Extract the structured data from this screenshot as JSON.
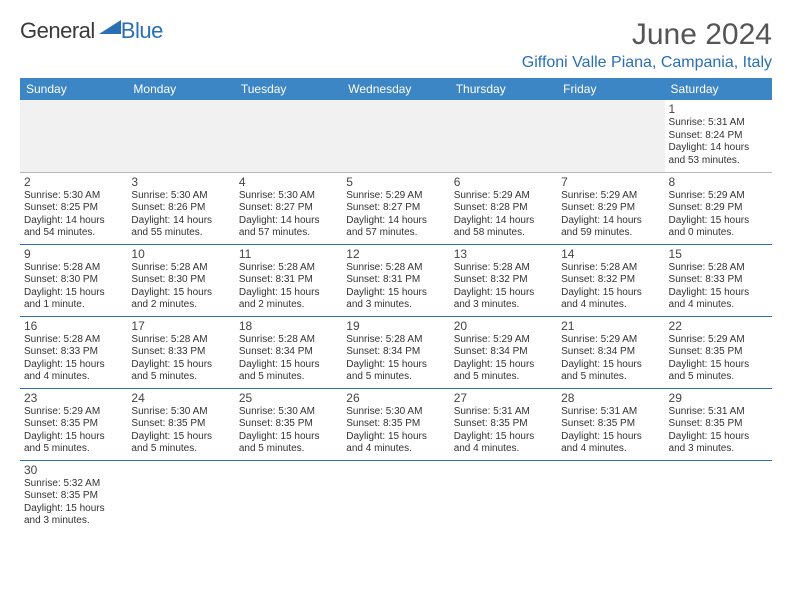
{
  "logo": {
    "general": "General",
    "blue": "Blue"
  },
  "title": "June 2024",
  "location": "Giffoni Valle Piana, Campania, Italy",
  "colors": {
    "header_bg": "#3d86c6",
    "header_text": "#ffffff",
    "accent": "#2a6fb5",
    "body_text": "#333333",
    "title_text": "#555555",
    "empty_bg": "#f1f1f1"
  },
  "weekdays": [
    "Sunday",
    "Monday",
    "Tuesday",
    "Wednesday",
    "Thursday",
    "Friday",
    "Saturday"
  ],
  "weeks": [
    [
      null,
      null,
      null,
      null,
      null,
      null,
      {
        "d": "1",
        "sr": "5:31 AM",
        "ss": "8:24 PM",
        "dl": "14 hours and 53 minutes."
      }
    ],
    [
      {
        "d": "2",
        "sr": "5:30 AM",
        "ss": "8:25 PM",
        "dl": "14 hours and 54 minutes."
      },
      {
        "d": "3",
        "sr": "5:30 AM",
        "ss": "8:26 PM",
        "dl": "14 hours and 55 minutes."
      },
      {
        "d": "4",
        "sr": "5:30 AM",
        "ss": "8:27 PM",
        "dl": "14 hours and 57 minutes."
      },
      {
        "d": "5",
        "sr": "5:29 AM",
        "ss": "8:27 PM",
        "dl": "14 hours and 57 minutes."
      },
      {
        "d": "6",
        "sr": "5:29 AM",
        "ss": "8:28 PM",
        "dl": "14 hours and 58 minutes."
      },
      {
        "d": "7",
        "sr": "5:29 AM",
        "ss": "8:29 PM",
        "dl": "14 hours and 59 minutes."
      },
      {
        "d": "8",
        "sr": "5:29 AM",
        "ss": "8:29 PM",
        "dl": "15 hours and 0 minutes."
      }
    ],
    [
      {
        "d": "9",
        "sr": "5:28 AM",
        "ss": "8:30 PM",
        "dl": "15 hours and 1 minute."
      },
      {
        "d": "10",
        "sr": "5:28 AM",
        "ss": "8:30 PM",
        "dl": "15 hours and 2 minutes."
      },
      {
        "d": "11",
        "sr": "5:28 AM",
        "ss": "8:31 PM",
        "dl": "15 hours and 2 minutes."
      },
      {
        "d": "12",
        "sr": "5:28 AM",
        "ss": "8:31 PM",
        "dl": "15 hours and 3 minutes."
      },
      {
        "d": "13",
        "sr": "5:28 AM",
        "ss": "8:32 PM",
        "dl": "15 hours and 3 minutes."
      },
      {
        "d": "14",
        "sr": "5:28 AM",
        "ss": "8:32 PM",
        "dl": "15 hours and 4 minutes."
      },
      {
        "d": "15",
        "sr": "5:28 AM",
        "ss": "8:33 PM",
        "dl": "15 hours and 4 minutes."
      }
    ],
    [
      {
        "d": "16",
        "sr": "5:28 AM",
        "ss": "8:33 PM",
        "dl": "15 hours and 4 minutes."
      },
      {
        "d": "17",
        "sr": "5:28 AM",
        "ss": "8:33 PM",
        "dl": "15 hours and 5 minutes."
      },
      {
        "d": "18",
        "sr": "5:28 AM",
        "ss": "8:34 PM",
        "dl": "15 hours and 5 minutes."
      },
      {
        "d": "19",
        "sr": "5:28 AM",
        "ss": "8:34 PM",
        "dl": "15 hours and 5 minutes."
      },
      {
        "d": "20",
        "sr": "5:29 AM",
        "ss": "8:34 PM",
        "dl": "15 hours and 5 minutes."
      },
      {
        "d": "21",
        "sr": "5:29 AM",
        "ss": "8:34 PM",
        "dl": "15 hours and 5 minutes."
      },
      {
        "d": "22",
        "sr": "5:29 AM",
        "ss": "8:35 PM",
        "dl": "15 hours and 5 minutes."
      }
    ],
    [
      {
        "d": "23",
        "sr": "5:29 AM",
        "ss": "8:35 PM",
        "dl": "15 hours and 5 minutes."
      },
      {
        "d": "24",
        "sr": "5:30 AM",
        "ss": "8:35 PM",
        "dl": "15 hours and 5 minutes."
      },
      {
        "d": "25",
        "sr": "5:30 AM",
        "ss": "8:35 PM",
        "dl": "15 hours and 5 minutes."
      },
      {
        "d": "26",
        "sr": "5:30 AM",
        "ss": "8:35 PM",
        "dl": "15 hours and 4 minutes."
      },
      {
        "d": "27",
        "sr": "5:31 AM",
        "ss": "8:35 PM",
        "dl": "15 hours and 4 minutes."
      },
      {
        "d": "28",
        "sr": "5:31 AM",
        "ss": "8:35 PM",
        "dl": "15 hours and 4 minutes."
      },
      {
        "d": "29",
        "sr": "5:31 AM",
        "ss": "8:35 PM",
        "dl": "15 hours and 3 minutes."
      }
    ],
    [
      {
        "d": "30",
        "sr": "5:32 AM",
        "ss": "8:35 PM",
        "dl": "15 hours and 3 minutes."
      },
      null,
      null,
      null,
      null,
      null,
      null
    ]
  ],
  "labels": {
    "sunrise": "Sunrise: ",
    "sunset": "Sunset: ",
    "daylight": "Daylight: "
  }
}
